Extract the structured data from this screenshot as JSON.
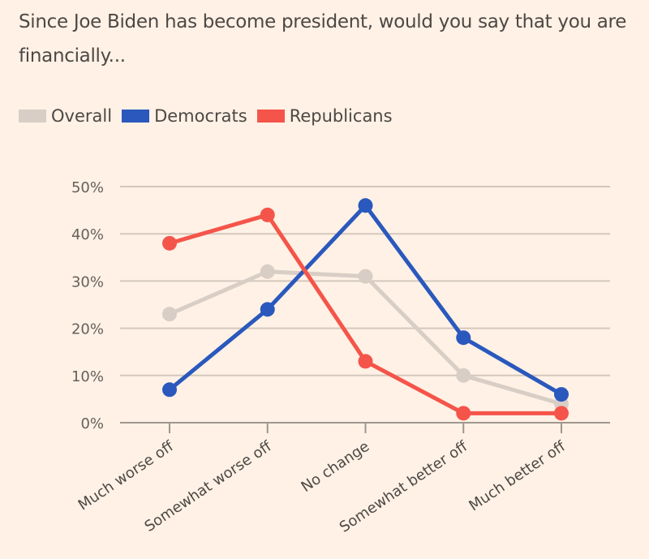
{
  "chart_data": {
    "type": "line",
    "title": "Since Joe Biden has become president, would you say that you are financially...",
    "xlabel": "",
    "ylabel": "",
    "categories": [
      "Much worse off",
      "Somewhat worse off",
      "No change",
      "Somewhat better off",
      "Much better off"
    ],
    "ylim": [
      0,
      50
    ],
    "yticks": [
      0,
      10,
      20,
      30,
      40,
      50
    ],
    "ytick_labels": [
      "0%",
      "10%",
      "20%",
      "30%",
      "40%",
      "50%"
    ],
    "grid": true,
    "legend_position": "top-left",
    "series": [
      {
        "name": "Overall",
        "color": "#D9CEC5",
        "values": [
          23,
          32,
          31,
          10,
          4
        ]
      },
      {
        "name": "Democrats",
        "color": "#2A58BD",
        "values": [
          7,
          24,
          46,
          18,
          6
        ]
      },
      {
        "name": "Republicans",
        "color": "#F5544A",
        "values": [
          38,
          44,
          13,
          2,
          2
        ]
      }
    ]
  },
  "colors": {
    "background": "#FFF1E5",
    "gridline": "#D4C8BD",
    "axis": "#9E968F"
  }
}
